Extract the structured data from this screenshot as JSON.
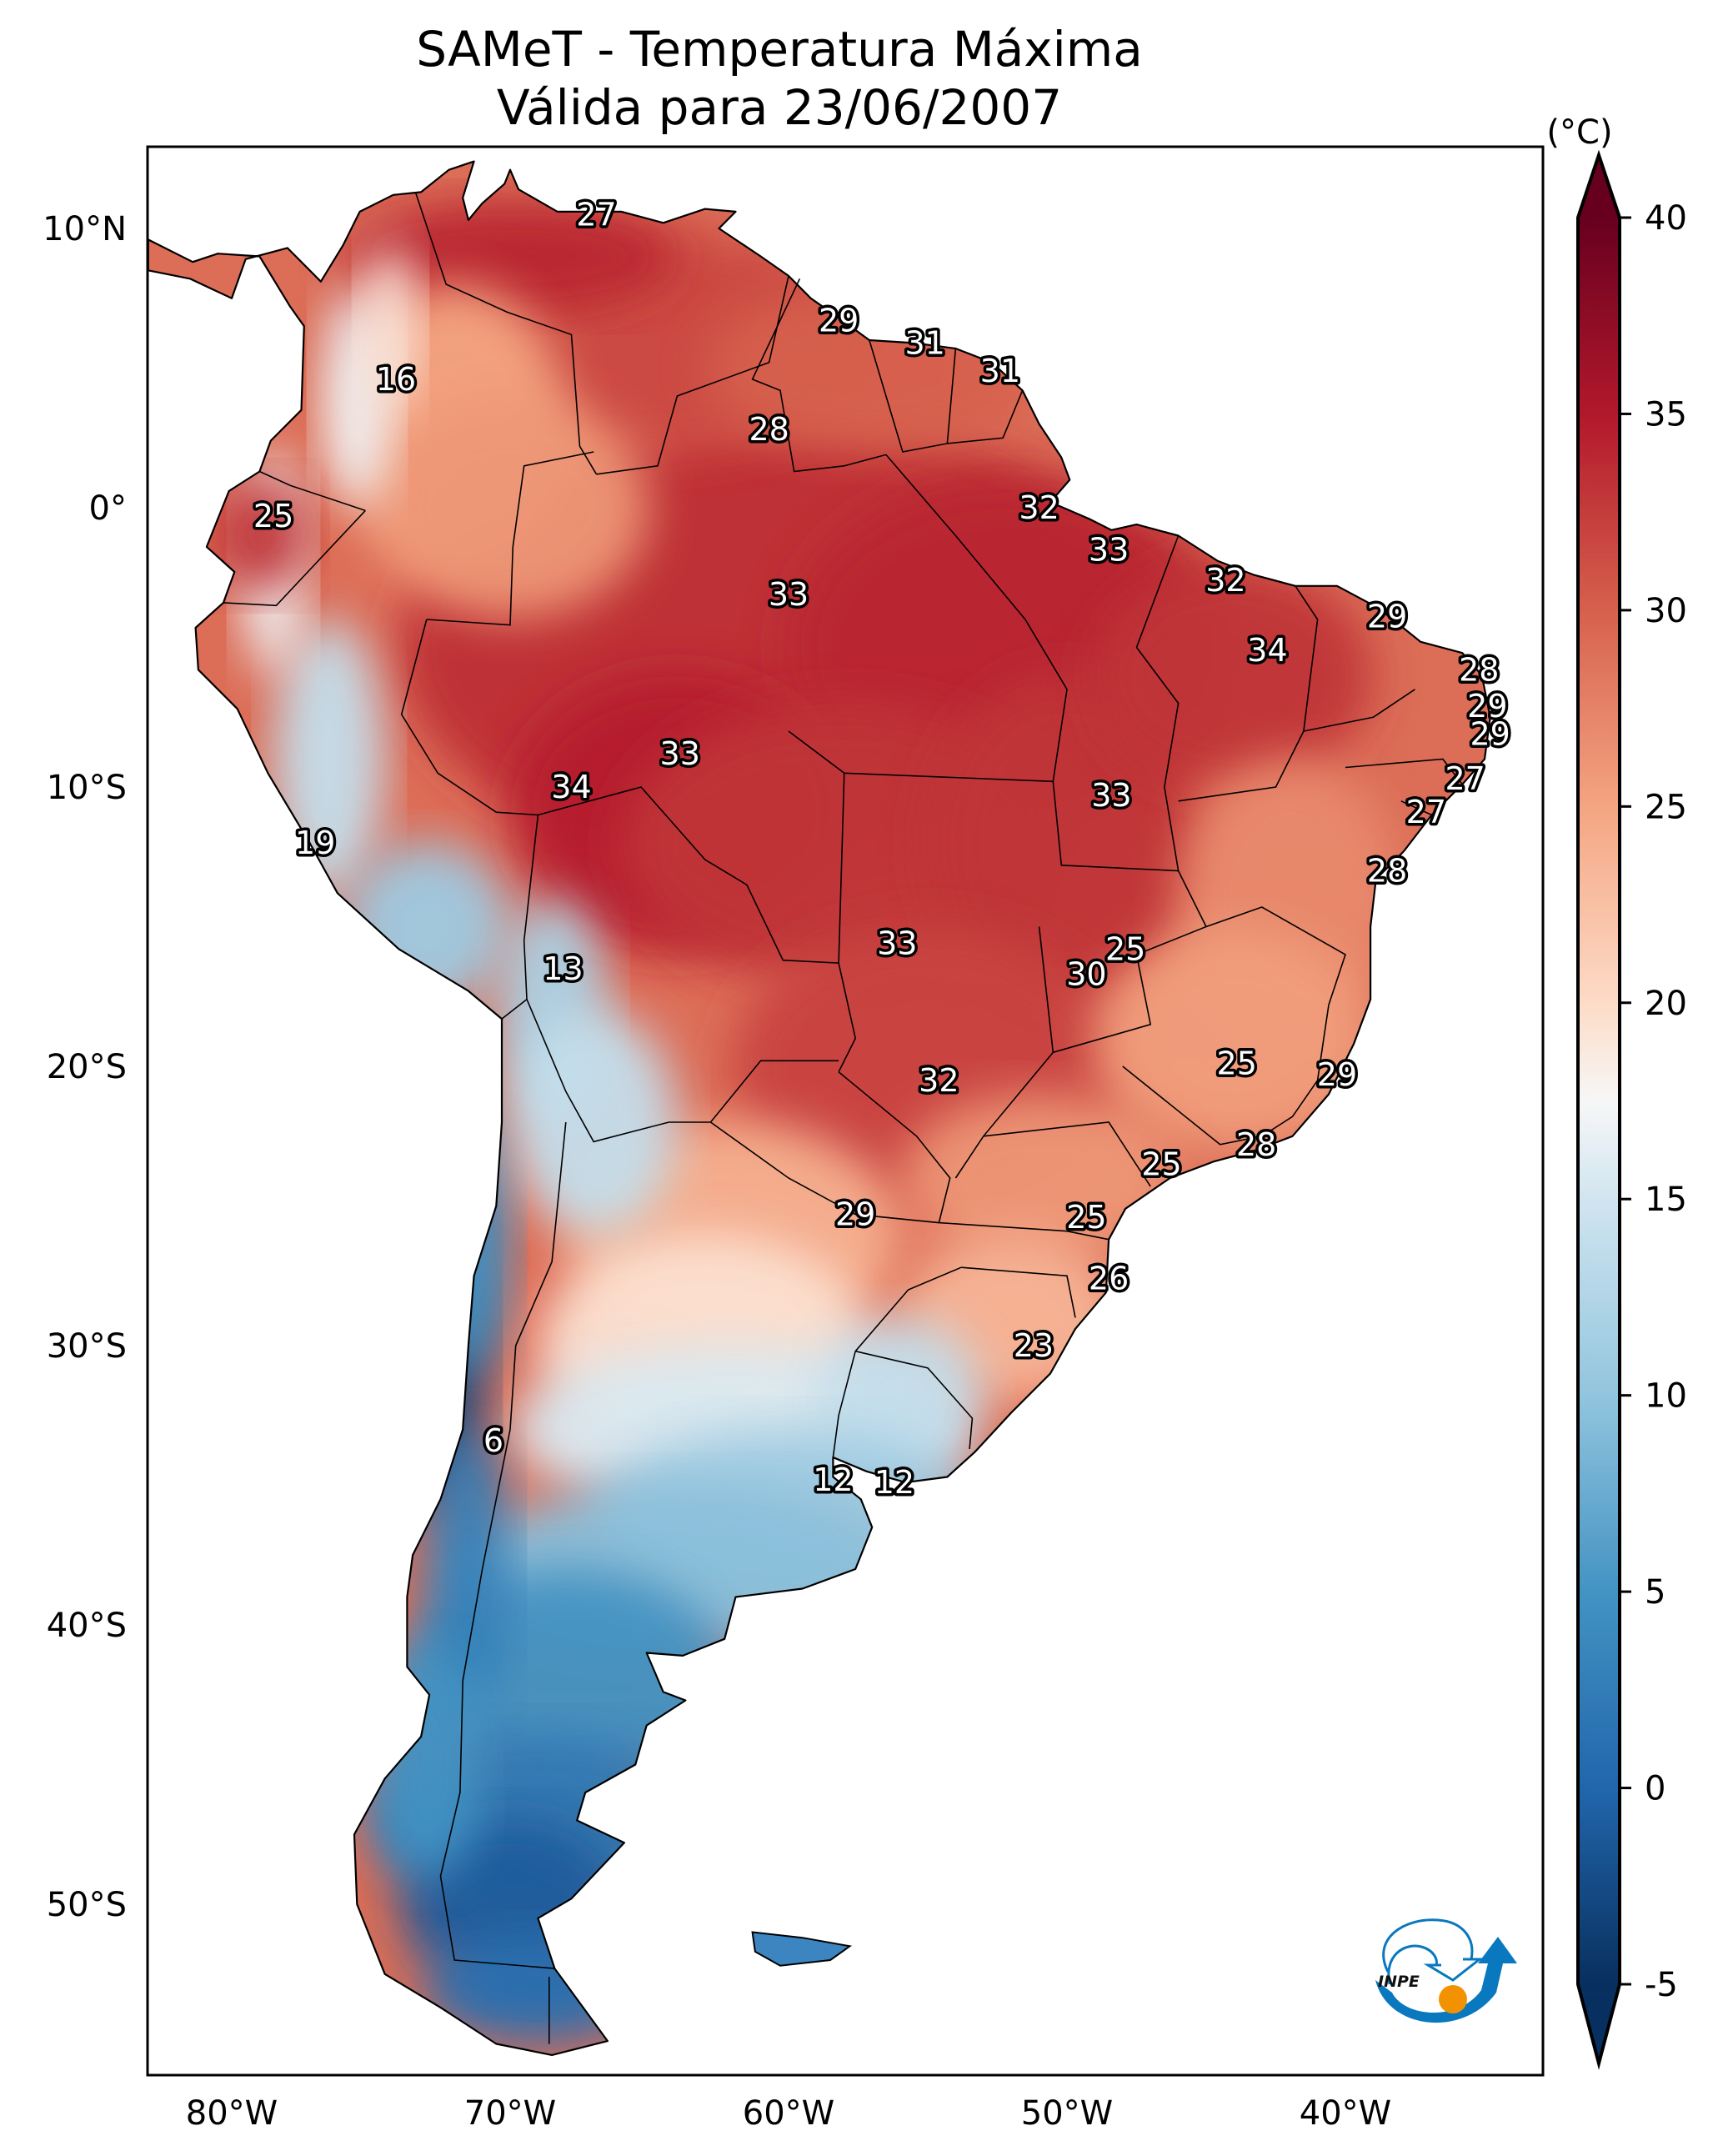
{
  "figure": {
    "title_line1": "SAMeT - Temperatura Máxima",
    "title_line2": "Válida para 23/06/2007",
    "logo_text": "INPE",
    "logo_colors": {
      "blue": "#0a78be",
      "orange": "#f39200"
    }
  },
  "chart_data": {
    "type": "heatmap",
    "title": "SAMeT - Temperatura Máxima — Válida para 23/06/2007",
    "variable": "Maximum temperature",
    "units_label": "(°C)",
    "projection": "PlateCarree (lon/lat)",
    "extent": {
      "lon": [
        -83,
        -33
      ],
      "lat": [
        -56,
        13
      ]
    },
    "x_ticks": [
      {
        "value": -80,
        "label": "80°W"
      },
      {
        "value": -70,
        "label": "70°W"
      },
      {
        "value": -60,
        "label": "60°W"
      },
      {
        "value": -50,
        "label": "50°W"
      },
      {
        "value": -40,
        "label": "40°W"
      }
    ],
    "y_ticks": [
      {
        "value": 10,
        "label": "10°N"
      },
      {
        "value": 0,
        "label": "0°"
      },
      {
        "value": -10,
        "label": "10°S"
      },
      {
        "value": -20,
        "label": "20°S"
      },
      {
        "value": -30,
        "label": "30°S"
      },
      {
        "value": -40,
        "label": "40°S"
      },
      {
        "value": -50,
        "label": "50°S"
      }
    ],
    "colorbar": {
      "colormap": "RdBu_r",
      "range": [
        -5,
        40
      ],
      "extend": "both",
      "ticks": [
        40,
        35,
        30,
        25,
        20,
        15,
        10,
        5,
        0,
        -5
      ],
      "tick_labels": [
        "40",
        "35",
        "30",
        "25",
        "20",
        "15",
        "10",
        "5",
        "0",
        "-5"
      ],
      "stops": [
        {
          "v": -7,
          "c": "#053061"
        },
        {
          "v": -5,
          "c": "#08305f"
        },
        {
          "v": 0,
          "c": "#2166ac"
        },
        {
          "v": 5,
          "c": "#4393c3"
        },
        {
          "v": 10,
          "c": "#92c5de"
        },
        {
          "v": 15,
          "c": "#d1e5f0"
        },
        {
          "v": 17.5,
          "c": "#f7f7f7"
        },
        {
          "v": 20,
          "c": "#fddbc7"
        },
        {
          "v": 25,
          "c": "#f4a582"
        },
        {
          "v": 30,
          "c": "#d6604d"
        },
        {
          "v": 35,
          "c": "#b2182b"
        },
        {
          "v": 40,
          "c": "#67001f"
        }
      ]
    },
    "point_labels": [
      {
        "lon": -66.9,
        "lat": 10.5,
        "value": 27
      },
      {
        "lon": -74.1,
        "lat": 4.6,
        "value": 16
      },
      {
        "lon": -58.2,
        "lat": 6.7,
        "value": 29
      },
      {
        "lon": -55.1,
        "lat": 5.9,
        "value": 31
      },
      {
        "lon": -52.4,
        "lat": 4.9,
        "value": 31
      },
      {
        "lon": -60.7,
        "lat": 2.8,
        "value": 28
      },
      {
        "lon": -78.5,
        "lat": -0.3,
        "value": 25
      },
      {
        "lon": -51.0,
        "lat": 0.0,
        "value": 32
      },
      {
        "lon": -60.0,
        "lat": -3.1,
        "value": 33
      },
      {
        "lon": -48.5,
        "lat": -1.5,
        "value": 33
      },
      {
        "lon": -44.3,
        "lat": -2.6,
        "value": 32
      },
      {
        "lon": -38.5,
        "lat": -3.9,
        "value": 29
      },
      {
        "lon": -42.8,
        "lat": -5.1,
        "value": 34
      },
      {
        "lon": -35.2,
        "lat": -5.8,
        "value": 28
      },
      {
        "lon": -34.9,
        "lat": -7.1,
        "value": 29
      },
      {
        "lon": -34.8,
        "lat": -8.1,
        "value": 29
      },
      {
        "lon": -63.9,
        "lat": -8.8,
        "value": 33
      },
      {
        "lon": -67.8,
        "lat": -10.0,
        "value": 34
      },
      {
        "lon": -48.4,
        "lat": -10.3,
        "value": 33
      },
      {
        "lon": -35.7,
        "lat": -9.7,
        "value": 27
      },
      {
        "lon": -37.1,
        "lat": -10.9,
        "value": 27
      },
      {
        "lon": -77.0,
        "lat": -12.0,
        "value": 19
      },
      {
        "lon": -38.5,
        "lat": -13.0,
        "value": 28
      },
      {
        "lon": -47.9,
        "lat": -15.8,
        "value": 25
      },
      {
        "lon": -56.1,
        "lat": -15.6,
        "value": 33
      },
      {
        "lon": -49.3,
        "lat": -16.7,
        "value": 30
      },
      {
        "lon": -68.1,
        "lat": -16.5,
        "value": 13
      },
      {
        "lon": -43.9,
        "lat": -19.9,
        "value": 25
      },
      {
        "lon": -40.3,
        "lat": -20.3,
        "value": 29
      },
      {
        "lon": -54.6,
        "lat": -20.5,
        "value": 32
      },
      {
        "lon": -43.2,
        "lat": -22.8,
        "value": 28
      },
      {
        "lon": -46.6,
        "lat": -23.5,
        "value": 25
      },
      {
        "lon": -57.6,
        "lat": -25.3,
        "value": 29
      },
      {
        "lon": -49.3,
        "lat": -25.4,
        "value": 25
      },
      {
        "lon": -48.5,
        "lat": -27.6,
        "value": 26
      },
      {
        "lon": -51.2,
        "lat": -30.0,
        "value": 23
      },
      {
        "lon": -70.6,
        "lat": -33.4,
        "value": 6
      },
      {
        "lon": -58.4,
        "lat": -34.8,
        "value": 12
      },
      {
        "lon": -56.2,
        "lat": -34.9,
        "value": 12
      }
    ]
  }
}
